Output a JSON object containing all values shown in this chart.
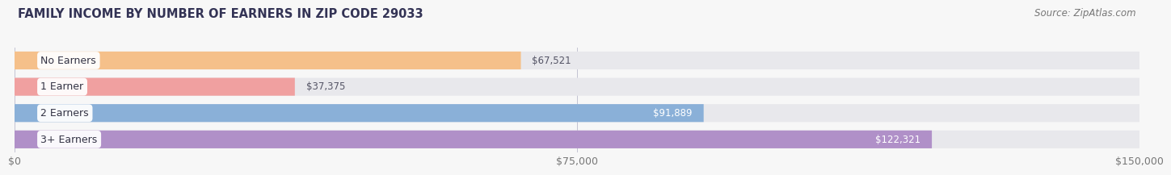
{
  "title": "FAMILY INCOME BY NUMBER OF EARNERS IN ZIP CODE 29033",
  "source": "Source: ZipAtlas.com",
  "categories": [
    "No Earners",
    "1 Earner",
    "2 Earners",
    "3+ Earners"
  ],
  "values": [
    67521,
    37375,
    91889,
    122321
  ],
  "bar_colors": [
    "#f5c08a",
    "#f0a0a0",
    "#8ab0d8",
    "#b090c8"
  ],
  "bar_bg_color": "#e8e8ec",
  "max_value": 150000,
  "xticks": [
    0,
    75000,
    150000
  ],
  "xtick_labels": [
    "$0",
    "$75,000",
    "$150,000"
  ],
  "value_label_colors": [
    "#555566",
    "#555566",
    "#ffffff",
    "#ffffff"
  ],
  "title_fontsize": 10.5,
  "source_fontsize": 8.5,
  "tick_fontsize": 9,
  "bar_label_fontsize": 8.5,
  "category_fontsize": 9,
  "fig_bg_color": "#f7f7f7",
  "title_color": "#333355",
  "source_color": "#777777"
}
